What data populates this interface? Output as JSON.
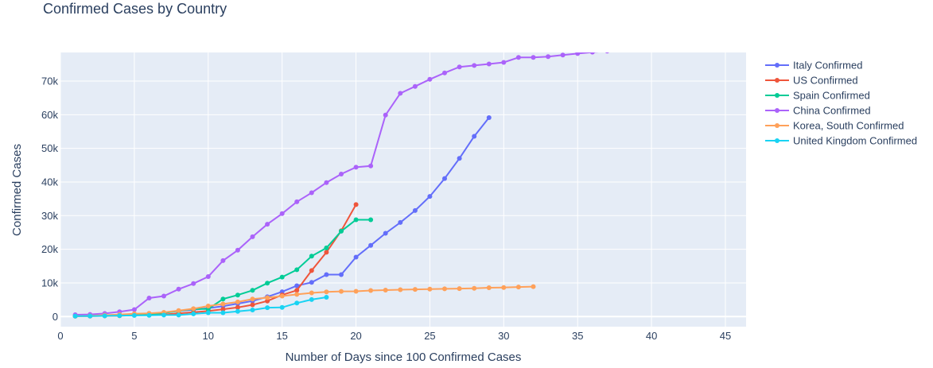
{
  "chart_data": {
    "type": "line",
    "title": "Confirmed Cases by Country",
    "xlabel": "Number of Days since 100 Confirmed Cases",
    "ylabel": "Confirmed Cases",
    "xlim": [
      0,
      46.4
    ],
    "ylim": [
      -3000,
      78500
    ],
    "x_ticks": [
      0,
      5,
      10,
      15,
      20,
      25,
      30,
      35,
      40,
      45
    ],
    "y_ticks": [
      0,
      10000,
      20000,
      30000,
      40000,
      50000,
      60000,
      70000
    ],
    "y_tick_labels": [
      "0",
      "10k",
      "20k",
      "30k",
      "40k",
      "50k",
      "60k",
      "70k"
    ],
    "grid": true,
    "legend_position": "right",
    "colors": {
      "plot_bg": "#E5ECF6",
      "grid": "#ffffff",
      "text": "#2a3f5f"
    },
    "series": [
      {
        "name": "Italy Confirmed",
        "color": "#636EFA",
        "x": [
          1,
          2,
          3,
          4,
          5,
          6,
          7,
          8,
          9,
          10,
          11,
          12,
          13,
          14,
          15,
          16,
          17,
          18,
          19,
          20,
          21,
          22,
          23,
          24,
          25,
          26,
          27,
          28,
          29
        ],
        "y": [
          155,
          229,
          322,
          453,
          655,
          888,
          1128,
          1694,
          2036,
          2502,
          3089,
          3858,
          4636,
          5883,
          7375,
          9172,
          10149,
          12462,
          12462,
          17660,
          21157,
          24747,
          27980,
          31506,
          35713,
          41035,
          47021,
          53578,
          59138
        ]
      },
      {
        "name": "US Confirmed",
        "color": "#EF553B",
        "x": [
          1,
          2,
          3,
          4,
          5,
          6,
          7,
          8,
          9,
          10,
          11,
          12,
          13,
          14,
          15,
          16,
          17,
          18,
          19,
          20
        ],
        "y": [
          118,
          149,
          217,
          262,
          402,
          518,
          583,
          959,
          1281,
          1663,
          2179,
          2727,
          3499,
          4632,
          6421,
          7786,
          13680,
          19101,
          25493,
          33276
        ]
      },
      {
        "name": "Spain Confirmed",
        "color": "#00CC96",
        "x": [
          1,
          2,
          3,
          4,
          5,
          6,
          7,
          8,
          9,
          10,
          11,
          12,
          13,
          14,
          15,
          16,
          17,
          18,
          19,
          20,
          21
        ],
        "y": [
          165,
          222,
          259,
          400,
          500,
          673,
          1073,
          1695,
          2277,
          2277,
          5232,
          6391,
          7798,
          9942,
          11748,
          13910,
          17963,
          20410,
          25374,
          28768,
          28768
        ]
      },
      {
        "name": "China Confirmed",
        "color": "#AB63FA",
        "x": [
          1,
          2,
          3,
          4,
          5,
          6,
          7,
          8,
          9,
          10,
          11,
          12,
          13,
          14,
          15,
          16,
          17,
          18,
          19,
          20,
          21,
          22,
          23,
          24,
          25,
          26,
          27,
          28,
          29,
          30,
          31,
          32,
          33,
          34,
          35,
          36,
          37
        ],
        "y": [
          548,
          643,
          920,
          1406,
          2075,
          5509,
          6087,
          8141,
          9802,
          11891,
          16630,
          19716,
          23707,
          27440,
          30587,
          34110,
          36814,
          39829,
          42354,
          44386,
          44759,
          59895,
          66358,
          68413,
          70513,
          72434,
          74211,
          74619,
          75077,
          75550,
          77001,
          77022,
          77241,
          77754,
          78166,
          78600,
          78927
        ]
      },
      {
        "name": "Korea, South Confirmed",
        "color": "#FFA15A",
        "x": [
          1,
          2,
          3,
          4,
          5,
          6,
          7,
          8,
          9,
          10,
          11,
          12,
          13,
          14,
          15,
          16,
          17,
          18,
          19,
          20,
          21,
          22,
          23,
          24,
          25,
          26,
          27,
          28,
          29,
          30,
          31,
          32
        ],
        "y": [
          104,
          204,
          433,
          602,
          833,
          977,
          1261,
          1766,
          2337,
          3150,
          3736,
          4335,
          5186,
          5621,
          6088,
          6593,
          7041,
          7314,
          7478,
          7513,
          7755,
          7869,
          7979,
          8086,
          8162,
          8236,
          8320,
          8413,
          8565,
          8652,
          8799,
          8897
        ]
      },
      {
        "name": "United Kingdom Confirmed",
        "color": "#19D3F3",
        "x": [
          1,
          2,
          3,
          4,
          5,
          6,
          7,
          8,
          9,
          10,
          11,
          12,
          13,
          14,
          15,
          16,
          17,
          18
        ],
        "y": [
          116,
          164,
          207,
          274,
          322,
          384,
          459,
          459,
          802,
          1144,
          1145,
          1551,
          1960,
          2642,
          2716,
          4014,
          5067,
          5745
        ]
      }
    ]
  }
}
